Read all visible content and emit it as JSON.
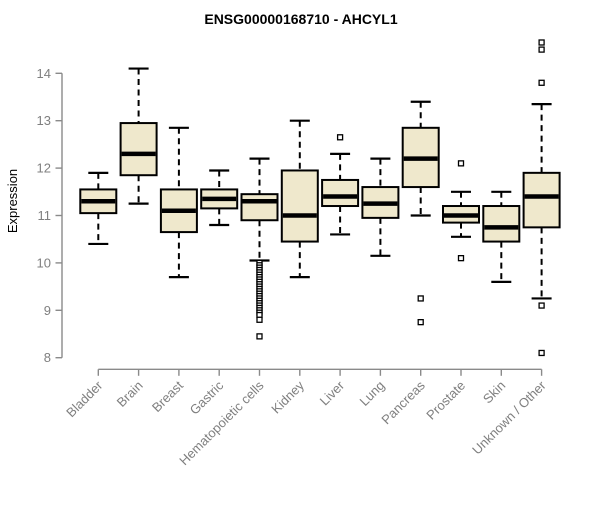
{
  "chart_data": {
    "type": "boxplot",
    "title": "ENSG00000168710 - AHCYL1",
    "xlabel": "",
    "ylabel": "Expression",
    "ylim": [
      8,
      14
    ],
    "yticks": [
      8,
      9,
      10,
      11,
      12,
      13,
      14
    ],
    "grid": false,
    "legend": null,
    "categories": [
      "Bladder",
      "Brain",
      "Breast",
      "Gastric",
      "Hematopoietic cells",
      "Kidney",
      "Liver",
      "Lung",
      "Pancreas",
      "Prostate",
      "Skin",
      "Unknown / Other"
    ],
    "series": [
      {
        "name": "Bladder",
        "low": 10.4,
        "q1": 11.05,
        "median": 11.3,
        "q3": 11.55,
        "high": 11.9,
        "outliers": []
      },
      {
        "name": "Brain",
        "low": 11.25,
        "q1": 11.85,
        "median": 12.3,
        "q3": 12.95,
        "high": 14.1,
        "outliers": []
      },
      {
        "name": "Breast",
        "low": 9.7,
        "q1": 10.65,
        "median": 11.1,
        "q3": 11.55,
        "high": 12.85,
        "outliers": []
      },
      {
        "name": "Gastric",
        "low": 10.8,
        "q1": 11.15,
        "median": 11.35,
        "q3": 11.55,
        "high": 11.95,
        "outliers": []
      },
      {
        "name": "Hematopoietic cells",
        "low": 10.05,
        "q1": 10.9,
        "median": 11.3,
        "q3": 11.45,
        "high": 12.2,
        "outliers": [
          10.0,
          9.95,
          9.9,
          9.85,
          9.8,
          9.75,
          9.7,
          9.65,
          9.6,
          9.55,
          9.5,
          9.45,
          9.4,
          9.35,
          9.3,
          9.25,
          9.2,
          9.15,
          9.1,
          9.05,
          9.0,
          8.95,
          8.9,
          8.8,
          8.45
        ]
      },
      {
        "name": "Kidney",
        "low": 9.7,
        "q1": 10.45,
        "median": 11.0,
        "q3": 11.95,
        "high": 13.0,
        "outliers": []
      },
      {
        "name": "Liver",
        "low": 10.6,
        "q1": 11.2,
        "median": 11.4,
        "q3": 11.75,
        "high": 12.3,
        "outliers": [
          12.65
        ]
      },
      {
        "name": "Lung",
        "low": 10.15,
        "q1": 10.95,
        "median": 11.25,
        "q3": 11.6,
        "high": 12.2,
        "outliers": []
      },
      {
        "name": "Pancreas",
        "low": 11.0,
        "q1": 11.6,
        "median": 12.2,
        "q3": 12.85,
        "high": 13.4,
        "outliers": [
          9.25,
          8.75
        ]
      },
      {
        "name": "Prostate",
        "low": 10.55,
        "q1": 10.85,
        "median": 11.0,
        "q3": 11.2,
        "high": 11.5,
        "outliers": [
          12.1,
          10.1
        ]
      },
      {
        "name": "Skin",
        "low": 9.6,
        "q1": 10.45,
        "median": 10.75,
        "q3": 11.2,
        "high": 11.5,
        "outliers": []
      },
      {
        "name": "Unknown / Other",
        "low": 9.25,
        "q1": 10.75,
        "median": 11.4,
        "q3": 11.9,
        "high": 13.35,
        "outliers": [
          14.65,
          14.5,
          13.8,
          9.1,
          8.1
        ]
      }
    ],
    "colors": {
      "background": "#FFFFFF",
      "box_fill": "#EFE8CC",
      "box_stroke": "#000000",
      "median": "#000000",
      "whisker": "#000000",
      "axis": "#8A8A8A",
      "tick_label": "#7F7F7F",
      "title": "#000000"
    }
  }
}
